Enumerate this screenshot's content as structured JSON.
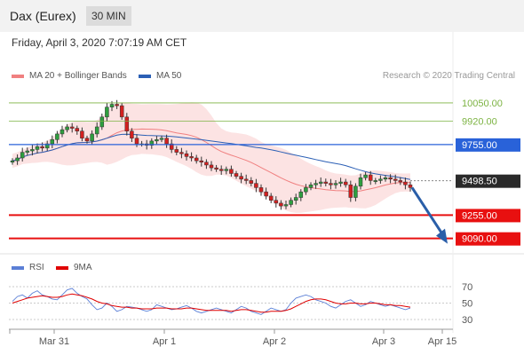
{
  "header": {
    "title": "Dax (Eurex)",
    "period_button": "30 MIN"
  },
  "date_line": "Friday, April 3, 2020 7:07:19 AM CET",
  "legend": {
    "ma20_label": "MA 20 + Bollinger Bands",
    "ma20_color": "#f08080",
    "ma50_label": "MA 50",
    "ma50_color": "#2b5fb5",
    "credit": "Research © 2020 Trading Central"
  },
  "rsi_legend": {
    "rsi_label": "RSI",
    "rsi_color": "#5b7fd6",
    "ma_label": "9MA",
    "ma_color": "#e00000"
  },
  "chart_data": {
    "type": "candlestick",
    "price_axis": {
      "min": 9000,
      "max": 10150
    },
    "x_axis_labels": [
      "Mar 31",
      "Apr 1",
      "Apr 2",
      "Apr 3",
      "Apr 15"
    ],
    "levels": [
      {
        "value": 10050.0,
        "label": "10050.00",
        "color": "#7cb342",
        "kind": "thin"
      },
      {
        "value": 9920.0,
        "label": "9920.00",
        "color": "#7cb342",
        "kind": "thin"
      },
      {
        "value": 9755.0,
        "label": "9755.00",
        "color": "#2962d9",
        "kind": "box"
      },
      {
        "value": 9498.5,
        "label": "9498.50",
        "color": "#2a2a2a",
        "kind": "box"
      },
      {
        "value": 9255.0,
        "label": "9255.00",
        "color": "#e81010",
        "kind": "box"
      },
      {
        "value": 9090.0,
        "label": "9090.00",
        "color": "#e81010",
        "kind": "box"
      }
    ],
    "closes": [
      9640,
      9660,
      9700,
      9710,
      9720,
      9740,
      9730,
      9760,
      9790,
      9830,
      9860,
      9880,
      9870,
      9850,
      9800,
      9780,
      9830,
      9880,
      9950,
      10020,
      10040,
      10030,
      9950,
      9850,
      9800,
      9760,
      9760,
      9750,
      9780,
      9790,
      9800,
      9760,
      9720,
      9700,
      9690,
      9670,
      9660,
      9640,
      9630,
      9610,
      9590,
      9580,
      9570,
      9580,
      9550,
      9530,
      9510,
      9500,
      9480,
      9450,
      9420,
      9390,
      9360,
      9340,
      9320,
      9330,
      9360,
      9380,
      9420,
      9450,
      9470,
      9480,
      9490,
      9480,
      9470,
      9480,
      9490,
      9470,
      9380,
      9460,
      9520,
      9540,
      9500,
      9500,
      9510,
      9520,
      9510,
      9500,
      9490,
      9470,
      9450
    ],
    "rsi": {
      "axis_labels": [
        70,
        50,
        30
      ],
      "rsi_values": [
        52,
        58,
        60,
        56,
        62,
        65,
        60,
        58,
        55,
        54,
        60,
        66,
        68,
        62,
        58,
        55,
        48,
        42,
        44,
        50,
        46,
        40,
        42,
        46,
        45,
        44,
        42,
        40,
        42,
        48,
        46,
        44,
        42,
        43,
        45,
        47,
        44,
        40,
        38,
        40,
        42,
        44,
        42,
        40,
        38,
        42,
        46,
        44,
        40,
        38,
        36,
        40,
        44,
        42,
        40,
        42,
        50,
        56,
        58,
        60,
        58,
        54,
        52,
        50,
        46,
        44,
        48,
        52,
        54,
        50,
        46,
        48,
        52,
        50,
        48,
        46,
        48,
        46,
        44,
        42,
        44
      ],
      "ma_values": [
        50,
        52,
        54,
        56,
        57,
        58,
        59,
        58,
        57,
        57,
        58,
        60,
        61,
        60,
        59,
        57,
        55,
        52,
        50,
        49,
        47,
        46,
        45,
        45,
        44,
        44,
        43,
        43,
        43,
        44,
        44,
        44,
        43,
        43,
        43,
        44,
        44,
        43,
        42,
        41,
        41,
        41,
        41,
        41,
        40,
        41,
        42,
        42,
        41,
        40,
        39,
        39,
        40,
        40,
        40,
        41,
        43,
        46,
        49,
        52,
        54,
        55,
        55,
        54,
        52,
        50,
        49,
        49,
        50,
        50,
        49,
        49,
        50,
        50,
        49,
        48,
        48,
        47,
        47,
        46,
        45
      ]
    }
  }
}
